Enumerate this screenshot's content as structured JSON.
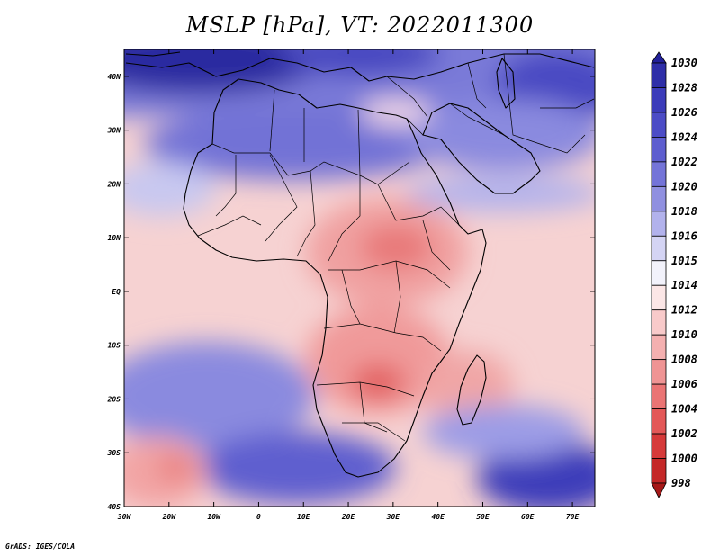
{
  "title": "MSLP [hPa], VT: 2022011300",
  "credit": "GrADS: IGES/COLA",
  "map": {
    "lon_range": [
      -30,
      75
    ],
    "lat_range": [
      -40,
      45
    ],
    "x_ticks": [
      "30W",
      "20W",
      "10W",
      "0",
      "10E",
      "20E",
      "30E",
      "40E",
      "50E",
      "60E",
      "70E"
    ],
    "y_ticks": [
      "40N",
      "30N",
      "20N",
      "10N",
      "EQ",
      "10S",
      "20S",
      "30S",
      "40S"
    ]
  },
  "colorbar": {
    "levels": [
      "1030",
      "1028",
      "1026",
      "1024",
      "1022",
      "1020",
      "1018",
      "1016",
      "1015",
      "1014",
      "1012",
      "1010",
      "1008",
      "1006",
      "1004",
      "1002",
      "1000",
      "998"
    ],
    "colors": [
      "#22209a",
      "#2e2ea8",
      "#3c3cba",
      "#4c4cc6",
      "#5e5ecf",
      "#7474d8",
      "#9090e0",
      "#b2b2ec",
      "#d4d4f4",
      "#f2f2fb",
      "#fbe6e6",
      "#f8caca",
      "#f4b0b0",
      "#ef9494",
      "#ea7474",
      "#e35858",
      "#d63a3a",
      "#c42828",
      "#a61818"
    ]
  }
}
